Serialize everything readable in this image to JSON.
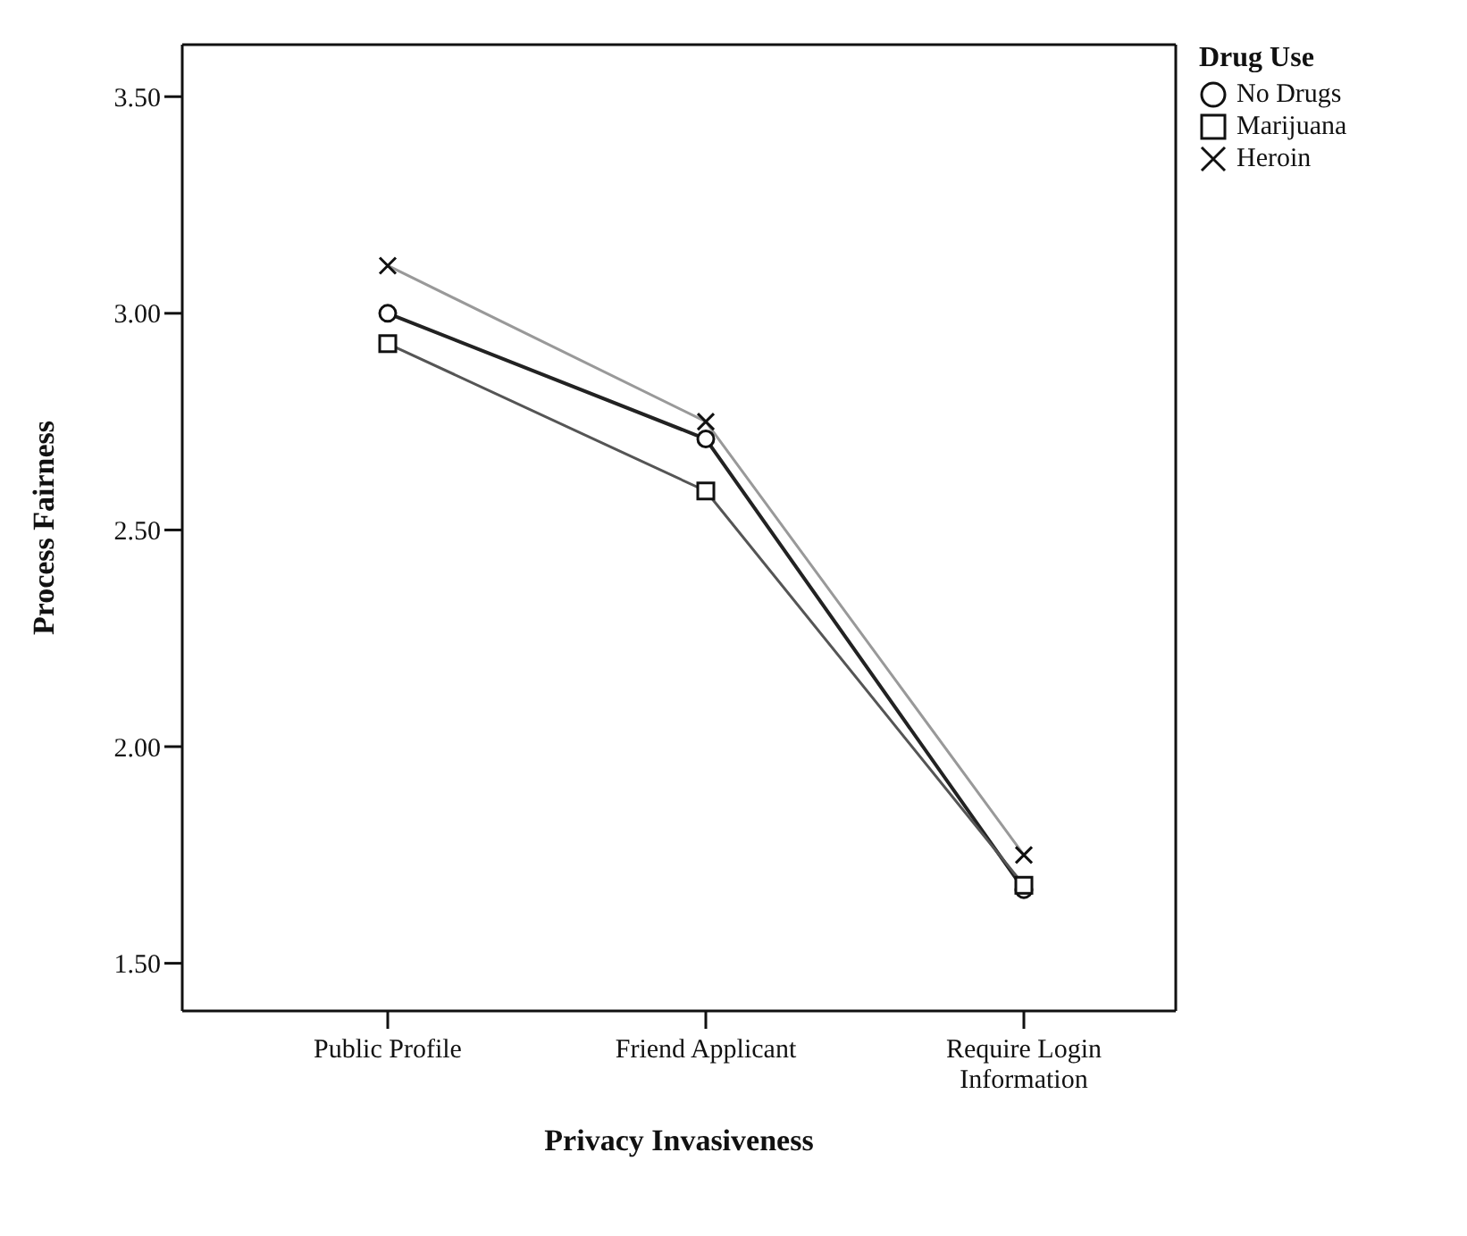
{
  "chart_data": {
    "type": "line",
    "xlabel": "Privacy Invasiveness",
    "ylabel": "Process Fairness",
    "legend_title": "Drug Use",
    "categories": [
      "Public Profile",
      "Friend Applicant",
      "Require Login Information"
    ],
    "series": [
      {
        "name": "No Drugs",
        "color": "#222222",
        "marker": "circle",
        "values": [
          3.0,
          2.71,
          1.67
        ]
      },
      {
        "name": "Marijuana",
        "color": "#555555",
        "marker": "square",
        "values": [
          2.93,
          2.59,
          1.68
        ]
      },
      {
        "name": "Heroin",
        "color": "#999999",
        "marker": "cross",
        "values": [
          3.11,
          2.75,
          1.75
        ]
      }
    ],
    "ylim": [
      1.39,
      3.62
    ],
    "yticks": [
      {
        "value": 1.5,
        "label": "1.50"
      },
      {
        "value": 2,
        "label": "2.00"
      },
      {
        "value": 2.5,
        "label": "2.50"
      },
      {
        "value": 3,
        "label": "3.00"
      },
      {
        "value": 3.5,
        "label": "3.50"
      }
    ],
    "legend": "top right",
    "line_style": "solid"
  }
}
